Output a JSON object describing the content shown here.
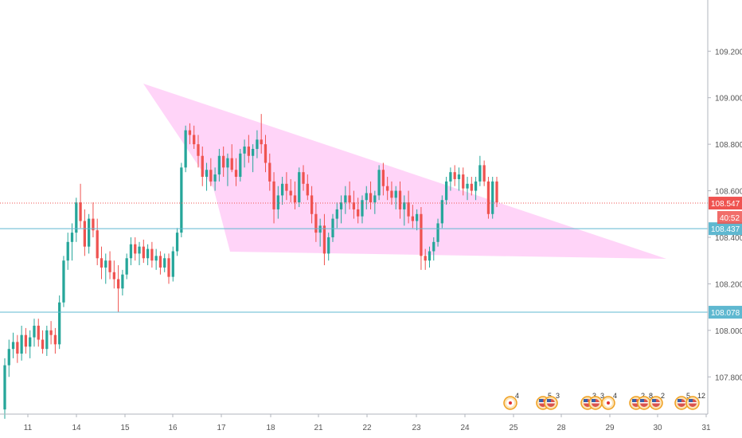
{
  "chart_data": {
    "type": "candlestick",
    "x_ticks": [
      "11",
      "14",
      "15",
      "16",
      "17",
      "18",
      "21",
      "22",
      "23",
      "24",
      "25",
      "28",
      "29",
      "30",
      "31"
    ],
    "y_ticks": [
      "109.200",
      "109.000",
      "108.800",
      "108.600",
      "108.400",
      "108.200",
      "108.000",
      "107.800"
    ],
    "ylim": [
      107.64,
      109.42
    ],
    "grid": false,
    "colors": {
      "up": "#26a69a",
      "down": "#ef5350",
      "wedge": "#ff9ff0",
      "level": "#5fb8d0",
      "price": "#ef5350"
    },
    "series": [
      {
        "name": "",
        "values": [
          [
            107.66,
            107.88,
            107.62,
            107.85
          ],
          [
            107.85,
            107.96,
            107.8,
            107.92
          ],
          [
            107.92,
            107.99,
            107.88,
            107.95
          ],
          [
            107.95,
            107.98,
            107.86,
            107.9
          ],
          [
            107.9,
            108.02,
            107.87,
            107.98
          ],
          [
            107.98,
            108.01,
            107.9,
            107.93
          ],
          [
            107.93,
            108.0,
            107.88,
            107.97
          ],
          [
            107.97,
            108.05,
            107.93,
            108.02
          ],
          [
            108.02,
            108.05,
            107.93,
            107.96
          ],
          [
            107.96,
            108.0,
            107.9,
            107.92
          ],
          [
            107.92,
            108.02,
            107.89,
            108.0
          ],
          [
            108.0,
            108.04,
            107.94,
            107.98
          ],
          [
            107.98,
            108.01,
            107.9,
            107.94
          ],
          [
            107.94,
            108.15,
            107.92,
            108.12
          ],
          [
            108.12,
            108.32,
            108.1,
            108.3
          ],
          [
            108.3,
            108.42,
            108.26,
            108.38
          ],
          [
            108.38,
            108.46,
            108.3,
            108.42
          ],
          [
            108.42,
            108.57,
            108.38,
            108.55
          ],
          [
            108.55,
            108.63,
            108.44,
            108.47
          ],
          [
            108.47,
            108.52,
            108.32,
            108.36
          ],
          [
            108.36,
            108.5,
            108.33,
            108.48
          ],
          [
            108.48,
            108.55,
            108.4,
            108.43
          ],
          [
            108.43,
            108.48,
            108.28,
            108.31
          ],
          [
            108.31,
            108.36,
            108.22,
            108.27
          ],
          [
            108.27,
            108.33,
            108.2,
            108.3
          ],
          [
            108.3,
            108.34,
            108.22,
            108.25
          ],
          [
            108.25,
            108.3,
            108.18,
            108.22
          ],
          [
            108.22,
            108.28,
            108.08,
            108.18
          ],
          [
            108.18,
            108.26,
            108.15,
            108.24
          ],
          [
            108.24,
            108.33,
            108.22,
            108.31
          ],
          [
            108.31,
            108.4,
            108.28,
            108.37
          ],
          [
            108.37,
            108.4,
            108.3,
            108.33
          ],
          [
            108.33,
            108.38,
            108.28,
            108.36
          ],
          [
            108.36,
            108.39,
            108.29,
            108.31
          ],
          [
            108.31,
            108.37,
            108.28,
            108.35
          ],
          [
            108.35,
            108.38,
            108.27,
            108.3
          ],
          [
            108.3,
            108.35,
            108.26,
            108.32
          ],
          [
            108.32,
            108.34,
            108.24,
            108.27
          ],
          [
            108.27,
            108.33,
            108.25,
            108.31
          ],
          [
            108.31,
            108.33,
            108.2,
            108.23
          ],
          [
            108.23,
            108.36,
            108.21,
            108.34
          ],
          [
            108.34,
            108.44,
            108.32,
            108.42
          ],
          [
            108.42,
            108.72,
            108.4,
            108.7
          ],
          [
            108.7,
            108.88,
            108.68,
            108.86
          ],
          [
            108.86,
            108.89,
            108.8,
            108.84
          ],
          [
            108.84,
            108.88,
            108.78,
            108.8
          ],
          [
            108.8,
            108.84,
            108.7,
            108.75
          ],
          [
            108.75,
            108.79,
            108.62,
            108.66
          ],
          [
            108.66,
            108.72,
            108.6,
            108.69
          ],
          [
            108.69,
            108.74,
            108.62,
            108.64
          ],
          [
            108.64,
            108.7,
            108.6,
            108.67
          ],
          [
            108.67,
            108.78,
            108.64,
            108.75
          ],
          [
            108.75,
            108.79,
            108.66,
            108.7
          ],
          [
            108.7,
            108.76,
            108.62,
            108.74
          ],
          [
            108.74,
            108.8,
            108.68,
            108.69
          ],
          [
            108.69,
            108.74,
            108.62,
            108.66
          ],
          [
            108.66,
            108.78,
            108.64,
            108.76
          ],
          [
            108.76,
            108.82,
            108.7,
            108.79
          ],
          [
            108.79,
            108.84,
            108.72,
            108.75
          ],
          [
            108.75,
            108.8,
            108.68,
            108.78
          ],
          [
            108.78,
            108.86,
            108.74,
            108.82
          ],
          [
            108.82,
            108.93,
            108.76,
            108.8
          ],
          [
            108.8,
            108.84,
            108.68,
            108.72
          ],
          [
            108.72,
            108.76,
            108.6,
            108.64
          ],
          [
            108.64,
            108.68,
            108.46,
            108.52
          ],
          [
            108.52,
            108.62,
            108.48,
            108.58
          ],
          [
            108.58,
            108.66,
            108.54,
            108.63
          ],
          [
            108.63,
            108.68,
            108.56,
            108.6
          ],
          [
            108.6,
            108.65,
            108.55,
            108.58
          ],
          [
            108.58,
            108.64,
            108.52,
            108.55
          ],
          [
            108.55,
            108.7,
            108.53,
            108.68
          ],
          [
            108.68,
            108.71,
            108.6,
            108.63
          ],
          [
            108.63,
            108.67,
            108.56,
            108.58
          ],
          [
            108.58,
            108.62,
            108.46,
            108.5
          ],
          [
            108.5,
            108.55,
            108.38,
            108.42
          ],
          [
            108.42,
            108.48,
            108.36,
            108.45
          ],
          [
            108.45,
            108.5,
            108.28,
            108.33
          ],
          [
            108.33,
            108.42,
            108.3,
            108.4
          ],
          [
            108.4,
            108.5,
            108.38,
            108.48
          ],
          [
            108.48,
            108.55,
            108.44,
            108.52
          ],
          [
            108.52,
            108.58,
            108.46,
            108.55
          ],
          [
            108.55,
            108.62,
            108.5,
            108.58
          ],
          [
            108.58,
            108.64,
            108.52,
            108.55
          ],
          [
            108.55,
            108.6,
            108.48,
            108.52
          ],
          [
            108.52,
            108.57,
            108.46,
            108.49
          ],
          [
            108.49,
            108.58,
            108.46,
            108.56
          ],
          [
            108.56,
            108.62,
            108.52,
            108.59
          ],
          [
            108.59,
            108.64,
            108.52,
            108.55
          ],
          [
            108.55,
            108.6,
            108.5,
            108.58
          ],
          [
            108.58,
            108.71,
            108.56,
            108.69
          ],
          [
            108.69,
            108.72,
            108.58,
            108.62
          ],
          [
            108.62,
            108.66,
            108.56,
            108.6
          ],
          [
            108.6,
            108.64,
            108.54,
            108.57
          ],
          [
            108.57,
            108.62,
            108.52,
            108.6
          ],
          [
            108.6,
            108.64,
            108.48,
            108.52
          ],
          [
            108.52,
            108.58,
            108.45,
            108.55
          ],
          [
            108.55,
            108.6,
            108.46,
            108.49
          ],
          [
            108.49,
            108.54,
            108.44,
            108.47
          ],
          [
            108.47,
            108.52,
            108.43,
            108.5
          ],
          [
            108.5,
            108.53,
            108.26,
            108.32
          ],
          [
            108.32,
            108.35,
            108.26,
            108.3
          ],
          [
            108.3,
            108.36,
            108.27,
            108.34
          ],
          [
            108.34,
            108.4,
            108.3,
            108.38
          ],
          [
            108.38,
            108.48,
            108.36,
            108.46
          ],
          [
            108.46,
            108.58,
            108.44,
            108.56
          ],
          [
            108.56,
            108.66,
            108.54,
            108.64
          ],
          [
            108.64,
            108.7,
            108.6,
            108.68
          ],
          [
            108.68,
            108.71,
            108.62,
            108.65
          ],
          [
            108.65,
            108.7,
            108.6,
            108.67
          ],
          [
            108.67,
            108.7,
            108.58,
            108.61
          ],
          [
            108.61,
            108.66,
            108.56,
            108.63
          ],
          [
            108.63,
            108.66,
            108.58,
            108.6
          ],
          [
            108.6,
            108.66,
            108.56,
            108.64
          ],
          [
            108.64,
            108.75,
            108.62,
            108.71
          ],
          [
            108.71,
            108.73,
            108.62,
            108.64
          ],
          [
            108.64,
            108.66,
            108.48,
            108.5
          ],
          [
            108.5,
            108.66,
            108.48,
            108.64
          ],
          [
            108.64,
            108.66,
            108.53,
            108.55
          ]
        ]
      }
    ],
    "horizontal_levels": [
      {
        "value": 108.437,
        "label": "108.437",
        "style": "solid",
        "color": "#5fb8d0"
      },
      {
        "value": 108.078,
        "label": "108.078",
        "style": "solid",
        "color": "#5fb8d0"
      },
      {
        "value": 108.547,
        "label": "108.547",
        "style": "dotted",
        "color": "#ef5350"
      }
    ],
    "countdown_label": "40:52",
    "events": [
      {
        "flag": "jp",
        "count": "4"
      },
      {
        "flag": "us",
        "count": "5"
      },
      {
        "flag": "us",
        "count": "3"
      },
      {
        "flag": "us",
        "count": "3"
      },
      {
        "flag": "us",
        "count": "3"
      },
      {
        "flag": "jp",
        "count": "4"
      },
      {
        "flag": "us",
        "count": "2"
      },
      {
        "flag": "us",
        "count": "8"
      },
      {
        "flag": "us",
        "count": "2"
      },
      {
        "flag": "us",
        "count": "5"
      },
      {
        "flag": "us",
        "count": "12"
      }
    ]
  }
}
